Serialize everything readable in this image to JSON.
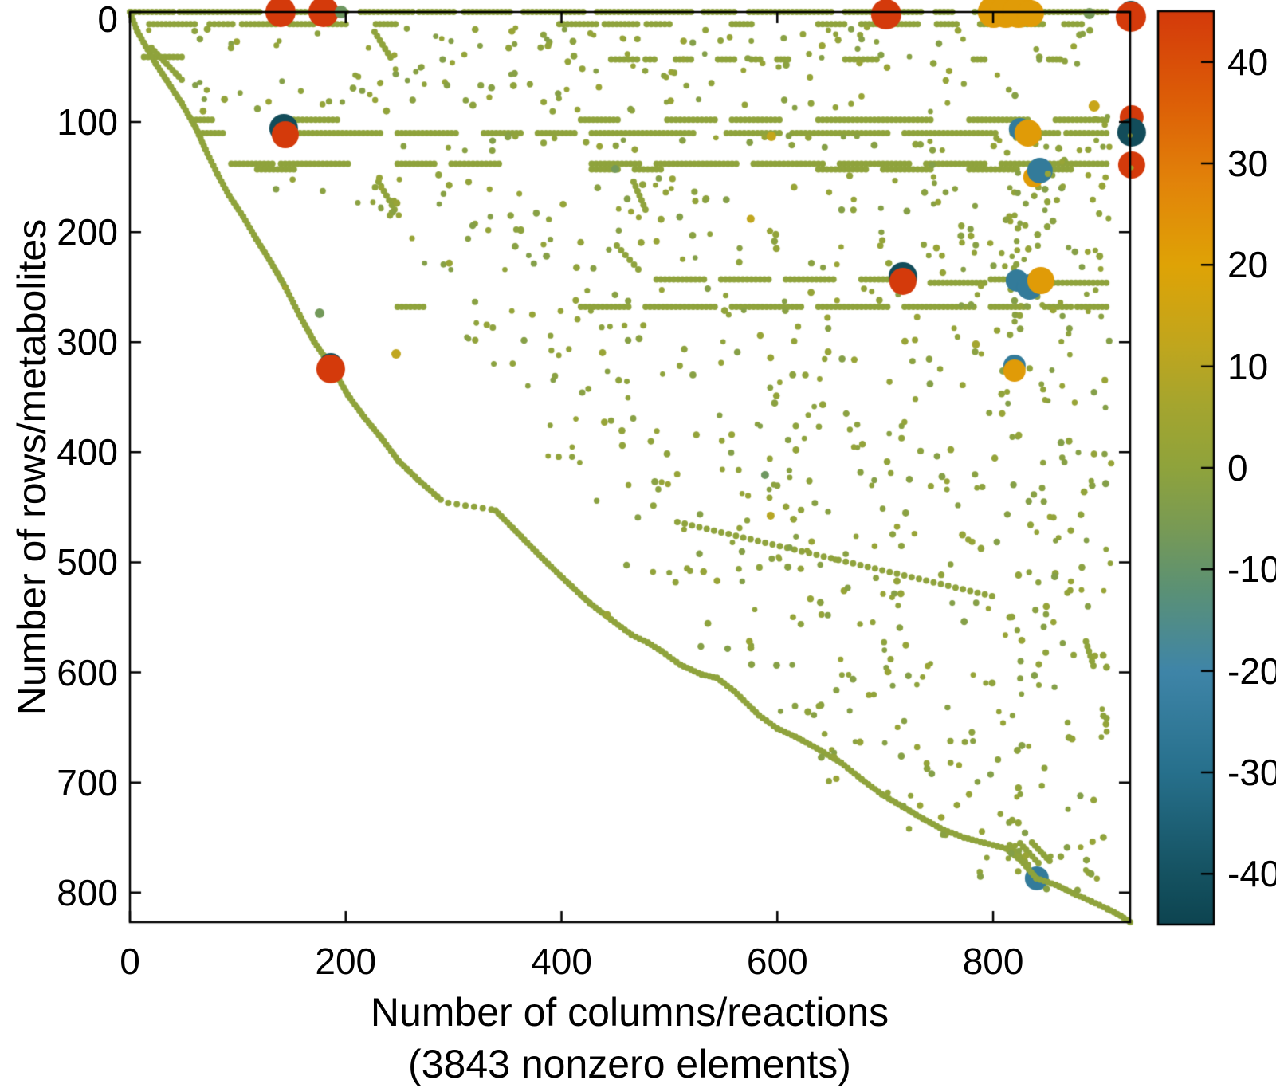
{
  "figure": {
    "background": "#ffffff",
    "frame_color": "#000000",
    "text_color": "#000000"
  },
  "chart_data": {
    "type": "scatter",
    "subtype": "sparse-matrix-spy-plot",
    "title": "",
    "xlabel": "Number of columns/reactions",
    "xlabel_line2": "(3843 nonzero elements)",
    "ylabel": "Number of rows/metabolites",
    "nonzero_elements": 3843,
    "xlim": [
      0,
      927
    ],
    "ylim": [
      0,
      827
    ],
    "y_axis_inverted": true,
    "grid": false,
    "x_ticks": [
      0,
      200,
      400,
      600,
      800
    ],
    "y_ticks": [
      0,
      100,
      200,
      300,
      400,
      500,
      600,
      700,
      800
    ],
    "colorbar": {
      "position": "right",
      "vmin": -45,
      "vmax": 45,
      "ticks": [
        40,
        30,
        20,
        10,
        0,
        -10,
        -20,
        -30,
        -40
      ],
      "stops": [
        [
          -45,
          "#0d4450"
        ],
        [
          -40,
          "#155261"
        ],
        [
          -30,
          "#27708c"
        ],
        [
          -20,
          "#3f85a8"
        ],
        [
          -12,
          "#5b9175"
        ],
        [
          -6,
          "#789a55"
        ],
        [
          0,
          "#8fa33c"
        ],
        [
          6,
          "#a4a52f"
        ],
        [
          12,
          "#c0a61e"
        ],
        [
          20,
          "#dfa306"
        ],
        [
          28,
          "#e2840a"
        ],
        [
          36,
          "#dd5f07"
        ],
        [
          45,
          "#d43a0b"
        ]
      ]
    },
    "accent_colors": {
      "dot_olive": "#8fa33c",
      "bubble_red": "#d43a0b",
      "bubble_orange": "#e0a106",
      "bubble_blue": "#337b9a",
      "bubble_teal": "#114b59"
    },
    "dot_value": 0,
    "dot_radius_px": 4,
    "main_curves": [
      [
        [
          0,
          0
        ],
        [
          7,
          18
        ],
        [
          24,
          47
        ],
        [
          36,
          65
        ],
        [
          48,
          83
        ],
        [
          61,
          105
        ],
        [
          70,
          125
        ],
        [
          81,
          147
        ],
        [
          92,
          167
        ],
        [
          105,
          186
        ],
        [
          117,
          206
        ],
        [
          131,
          228
        ],
        [
          144,
          250
        ],
        [
          157,
          275
        ],
        [
          171,
          300
        ],
        [
          188,
          324
        ],
        [
          202,
          348
        ],
        [
          217,
          368
        ],
        [
          233,
          387
        ],
        [
          249,
          408
        ],
        [
          267,
          425
        ],
        [
          288,
          443
        ]
      ],
      [
        [
          339,
          453
        ],
        [
          360,
          474
        ],
        [
          382,
          496
        ],
        [
          404,
          517
        ],
        [
          426,
          537
        ],
        [
          446,
          552
        ],
        [
          465,
          566
        ],
        [
          480,
          573
        ],
        [
          493,
          581
        ],
        [
          510,
          593
        ],
        [
          530,
          602
        ],
        [
          544,
          605
        ],
        [
          560,
          617
        ],
        [
          583,
          639
        ],
        [
          600,
          651
        ],
        [
          620,
          660
        ],
        [
          640,
          671
        ],
        [
          659,
          682
        ],
        [
          678,
          697
        ],
        [
          697,
          711
        ],
        [
          716,
          722
        ],
        [
          735,
          733
        ],
        [
          754,
          743
        ],
        [
          773,
          750
        ],
        [
          792,
          755
        ],
        [
          812,
          760
        ],
        [
          826,
          771
        ],
        [
          840,
          787
        ],
        [
          858,
          793
        ],
        [
          877,
          802
        ],
        [
          891,
          808
        ],
        [
          906,
          815
        ],
        [
          918,
          821
        ],
        [
          927,
          827
        ]
      ]
    ],
    "h_segments": [
      [
        0,
        1,
        40
      ],
      [
        0,
        46,
        120
      ],
      [
        0,
        128,
        170
      ],
      [
        0,
        183,
        200
      ],
      [
        0,
        214,
        262
      ],
      [
        0,
        268,
        300
      ],
      [
        0,
        310,
        352
      ],
      [
        0,
        365,
        420
      ],
      [
        0,
        433,
        520
      ],
      [
        0,
        532,
        560
      ],
      [
        0,
        574,
        650
      ],
      [
        0,
        663,
        690
      ],
      [
        0,
        702,
        733
      ],
      [
        0,
        747,
        762
      ],
      [
        0,
        783,
        800
      ],
      [
        0,
        848,
        905
      ],
      [
        11,
        18,
        60
      ],
      [
        11,
        74,
        95
      ],
      [
        11,
        104,
        135
      ],
      [
        11,
        148,
        170
      ],
      [
        11,
        184,
        200
      ],
      [
        11,
        228,
        246
      ],
      [
        11,
        398,
        432
      ],
      [
        11,
        440,
        470
      ],
      [
        11,
        479,
        500
      ],
      [
        11,
        558,
        576
      ],
      [
        11,
        638,
        662
      ],
      [
        11,
        678,
        696
      ],
      [
        11,
        708,
        730
      ],
      [
        11,
        748,
        766
      ],
      [
        11,
        788,
        802
      ],
      [
        11,
        828,
        846
      ],
      [
        11,
        866,
        882
      ],
      [
        41,
        13,
        48
      ],
      [
        43,
        446,
        470
      ],
      [
        43,
        478,
        486
      ],
      [
        43,
        506,
        520
      ],
      [
        43,
        545,
        560
      ],
      [
        43,
        576,
        584
      ],
      [
        43,
        600,
        610
      ],
      [
        43,
        663,
        692
      ],
      [
        43,
        782,
        792
      ],
      [
        43,
        852,
        862
      ],
      [
        98,
        58,
        76
      ],
      [
        98,
        148,
        192
      ],
      [
        98,
        418,
        452
      ],
      [
        98,
        498,
        542
      ],
      [
        98,
        558,
        602
      ],
      [
        98,
        638,
        742
      ],
      [
        98,
        778,
        832
      ],
      [
        98,
        858,
        905
      ],
      [
        110,
        64,
        86
      ],
      [
        110,
        138,
        232
      ],
      [
        110,
        248,
        302
      ],
      [
        110,
        328,
        362
      ],
      [
        110,
        378,
        412
      ],
      [
        110,
        428,
        522
      ],
      [
        110,
        553,
        602
      ],
      [
        110,
        614,
        702
      ],
      [
        110,
        718,
        802
      ],
      [
        110,
        818,
        860
      ],
      [
        110,
        868,
        905
      ],
      [
        138,
        94,
        132
      ],
      [
        138,
        140,
        202
      ],
      [
        138,
        248,
        282
      ],
      [
        138,
        298,
        342
      ],
      [
        138,
        428,
        472
      ],
      [
        138,
        488,
        562
      ],
      [
        138,
        578,
        642
      ],
      [
        138,
        658,
        722
      ],
      [
        138,
        738,
        792
      ],
      [
        138,
        808,
        905
      ],
      [
        143,
        118,
        152
      ],
      [
        143,
        428,
        452
      ],
      [
        143,
        468,
        492
      ],
      [
        143,
        638,
        682
      ],
      [
        143,
        698,
        742
      ],
      [
        143,
        778,
        822
      ],
      [
        143,
        838,
        872
      ],
      [
        243,
        488,
        532
      ],
      [
        243,
        548,
        592
      ],
      [
        243,
        608,
        652
      ],
      [
        243,
        678,
        722
      ],
      [
        243,
        798,
        832
      ],
      [
        246,
        742,
        792
      ],
      [
        246,
        844,
        905
      ],
      [
        268,
        248,
        272
      ],
      [
        268,
        418,
        462
      ],
      [
        268,
        478,
        542
      ],
      [
        268,
        558,
        622
      ],
      [
        268,
        638,
        702
      ],
      [
        268,
        718,
        782
      ],
      [
        268,
        798,
        832
      ],
      [
        268,
        848,
        872
      ],
      [
        268,
        878,
        905
      ]
    ],
    "diag_segments": [
      [
        19.9,
        32.6,
        48,
        61.5,
        4
      ],
      [
        226.7,
        18.1,
        241.5,
        41.3,
        5
      ],
      [
        230.4,
        154.2,
        245.2,
        179.6,
        5
      ],
      [
        466.8,
        154.2,
        477.8,
        179.6,
        5
      ],
      [
        451.3,
        212.2,
        471.2,
        233.9,
        6
      ],
      [
        295,
        446,
        335,
        452,
        8
      ],
      [
        507.4,
        463.4,
        799.1,
        530.8,
        7
      ],
      [
        886,
        572,
        893,
        594,
        5
      ],
      [
        815.4,
        756.7,
        832.3,
        774.8,
        4
      ],
      [
        825,
        755.3,
        842,
        773.3,
        4
      ],
      [
        836,
        754.6,
        852.3,
        771.2,
        4
      ]
    ],
    "scatter_regions": [
      [
        15,
        905,
        14,
        34,
        60
      ],
      [
        200,
        905,
        38,
        60,
        45
      ],
      [
        60,
        905,
        62,
        92,
        60
      ],
      [
        240,
        905,
        112,
        126,
        40
      ],
      [
        100,
        905,
        148,
        175,
        45
      ],
      [
        260,
        905,
        178,
        235,
        80
      ],
      [
        300,
        905,
        250,
        300,
        70
      ],
      [
        330,
        905,
        305,
        360,
        60
      ],
      [
        380,
        905,
        362,
        410,
        55
      ],
      [
        420,
        905,
        412,
        462,
        55
      ],
      [
        450,
        905,
        465,
        520,
        55
      ],
      [
        520,
        905,
        522,
        580,
        45
      ],
      [
        570,
        905,
        582,
        640,
        40
      ],
      [
        640,
        905,
        642,
        700,
        35
      ],
      [
        700,
        905,
        702,
        760,
        25
      ],
      [
        770,
        906,
        762,
        800,
        15
      ],
      [
        816,
        826,
        130,
        770,
        22
      ],
      [
        740,
        910,
        95,
        260,
        40
      ],
      [
        226,
        250,
        150,
        185,
        12
      ],
      [
        900,
        910,
        30,
        700,
        14
      ]
    ],
    "bubbles_under": [
      [
        840.5,
        787.1,
        15,
        -25
      ]
    ],
    "bubbles": [
      [
        139.6,
        0,
        19,
        45
      ],
      [
        179.5,
        0,
        19,
        45
      ],
      [
        195.7,
        0,
        8,
        -8
      ],
      [
        700.9,
        2.2,
        19,
        45
      ],
      [
        800.6,
        0,
        20,
        22
      ],
      [
        811.7,
        0,
        20,
        22
      ],
      [
        823.5,
        0,
        20,
        22
      ],
      [
        834.6,
        1.4,
        17,
        22
      ],
      [
        889.2,
        1.4,
        7,
        -6
      ],
      [
        927.7,
        0,
        14,
        -42
      ],
      [
        927.7,
        4.3,
        19,
        45
      ],
      [
        142.5,
        105.7,
        18,
        -42
      ],
      [
        144,
        111.5,
        17,
        45
      ],
      [
        824.9,
        106.4,
        14,
        -25
      ],
      [
        832.3,
        110.1,
        17,
        22
      ],
      [
        893.6,
        85.4,
        7,
        14
      ],
      [
        928.4,
        95.6,
        15,
        45
      ],
      [
        928.4,
        109.3,
        18,
        -42
      ],
      [
        926.9,
        112.2,
        3,
        2
      ],
      [
        837.5,
        149.9,
        13,
        22
      ],
      [
        843.4,
        144.1,
        16,
        -25
      ],
      [
        850.8,
        147,
        4,
        2
      ],
      [
        928.4,
        139,
        17,
        45
      ],
      [
        928.1,
        141.5,
        3,
        6
      ],
      [
        716.4,
        240.4,
        18,
        -42
      ],
      [
        716.4,
        244.7,
        17,
        45
      ],
      [
        822,
        244,
        14,
        -25
      ],
      [
        833.8,
        249.8,
        16,
        -25
      ],
      [
        844.2,
        244,
        17,
        22
      ],
      [
        784,
        302,
        5,
        6
      ],
      [
        246.7,
        310.6,
        6,
        12
      ],
      [
        819.8,
        321.5,
        14,
        -25
      ],
      [
        819.8,
        325.9,
        14,
        22
      ],
      [
        186.1,
        320.8,
        15,
        -42
      ],
      [
        186.1,
        324.4,
        18,
        45
      ],
      [
        143.6,
        250.5,
        3,
        5
      ],
      [
        442.2,
        547.9,
        5,
        3
      ],
      [
        594.5,
        113,
        6,
        13
      ],
      [
        575.3,
        188,
        5,
        12
      ],
      [
        449.8,
        142.7,
        5,
        -7
      ],
      [
        175.8,
        273.7,
        6,
        -7
      ],
      [
        588.6,
        420.7,
        5,
        -8
      ],
      [
        593.8,
        457.6,
        5,
        10
      ]
    ]
  }
}
